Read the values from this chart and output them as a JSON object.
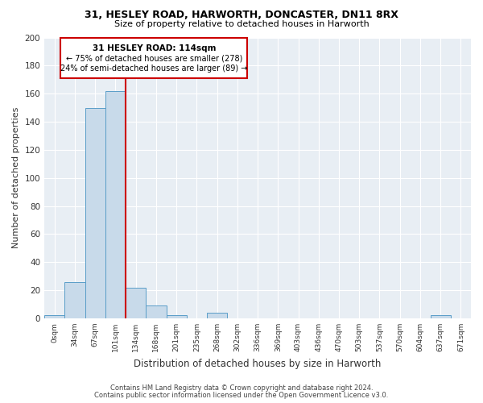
{
  "title1": "31, HESLEY ROAD, HARWORTH, DONCASTER, DN11 8RX",
  "title2": "Size of property relative to detached houses in Harworth",
  "xlabel": "Distribution of detached houses by size in Harworth",
  "ylabel": "Number of detached properties",
  "annotation_title": "31 HESLEY ROAD: 114sqm",
  "annotation_line1": "← 75% of detached houses are smaller (278)",
  "annotation_line2": "24% of semi-detached houses are larger (89) →",
  "bar_color": "#c8daea",
  "bar_edge_color": "#5a9dc8",
  "vline_color": "#cc0000",
  "annotation_box_color": "#cc0000",
  "background_color": "#e8eef4",
  "grid_color": "#ffffff",
  "categories": [
    "0sqm",
    "34sqm",
    "67sqm",
    "101sqm",
    "134sqm",
    "168sqm",
    "201sqm",
    "235sqm",
    "268sqm",
    "302sqm",
    "336sqm",
    "369sqm",
    "403sqm",
    "436sqm",
    "470sqm",
    "503sqm",
    "537sqm",
    "570sqm",
    "604sqm",
    "637sqm",
    "671sqm"
  ],
  "values": [
    2,
    26,
    150,
    162,
    22,
    9,
    2,
    0,
    4,
    0,
    0,
    0,
    0,
    0,
    0,
    0,
    0,
    0,
    0,
    2,
    0
  ],
  "ylim": [
    0,
    200
  ],
  "yticks": [
    0,
    20,
    40,
    60,
    80,
    100,
    120,
    140,
    160,
    180,
    200
  ],
  "footer1": "Contains HM Land Registry data © Crown copyright and database right 2024.",
  "footer2": "Contains public sector information licensed under the Open Government Licence v3.0.",
  "vline_x": 3.5,
  "figwidth": 6.0,
  "figheight": 5.0,
  "dpi": 100
}
